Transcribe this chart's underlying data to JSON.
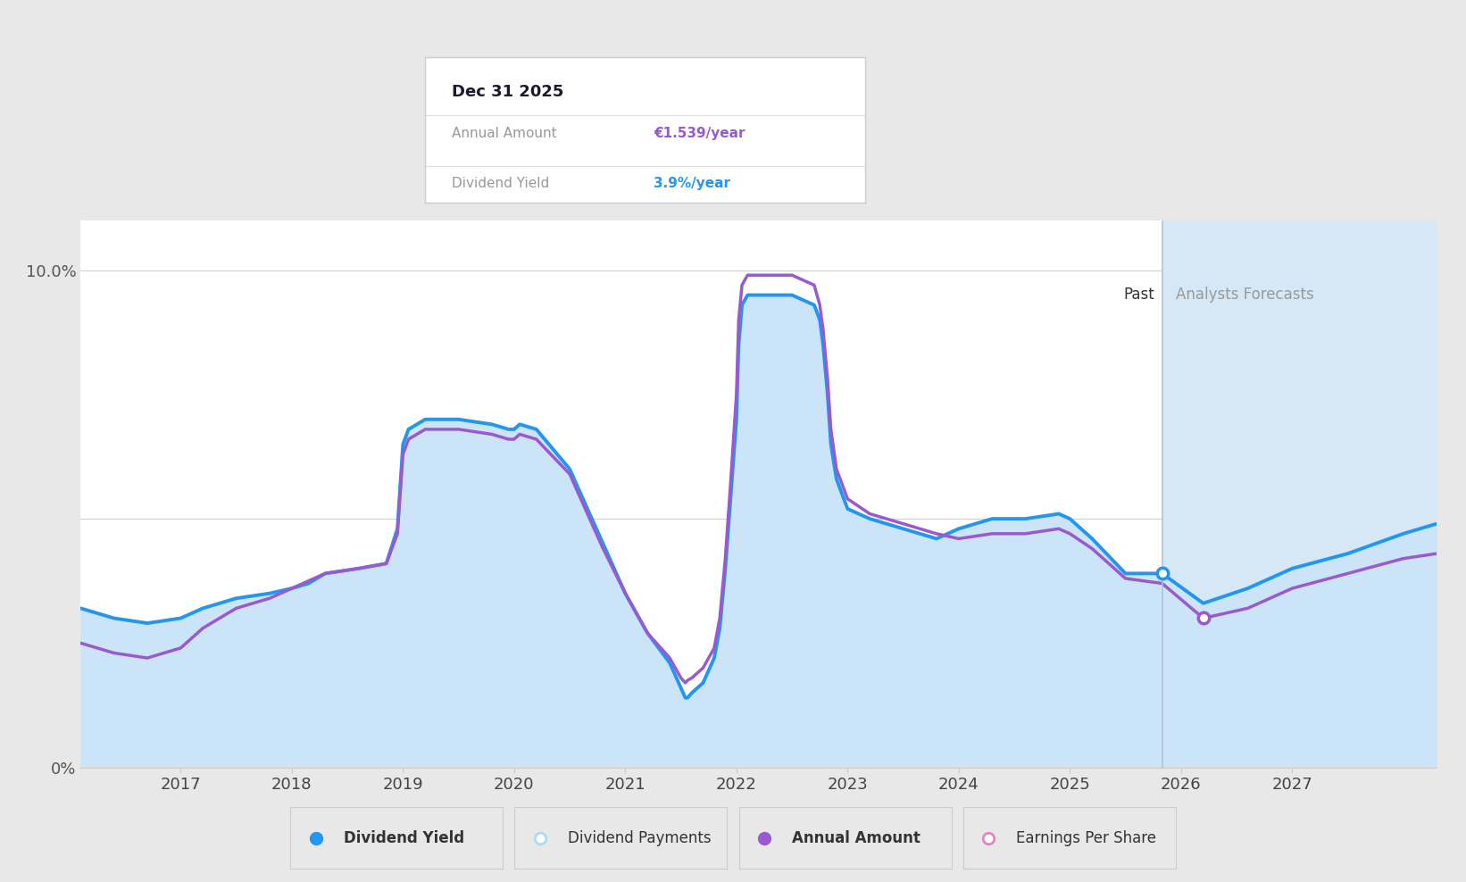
{
  "bg_color": "#e8e8e8",
  "plot_bg_color": "#ffffff",
  "x_min": 2016.1,
  "x_max": 2028.3,
  "y_min": 0.0,
  "y_max": 11.0,
  "x_ticks": [
    2017,
    2018,
    2019,
    2020,
    2021,
    2022,
    2023,
    2024,
    2025,
    2026,
    2027
  ],
  "forecast_start": 2025.83,
  "past_label": "Past",
  "forecast_label": "Analysts Forecasts",
  "tooltip_title": "Dec 31 2025",
  "tooltip_annual_label": "Annual Amount",
  "tooltip_annual_value": "€1.539/year",
  "tooltip_yield_label": "Dividend Yield",
  "tooltip_yield_value": "3.9%/year",
  "annual_color": "#9b59d0",
  "yield_color": "#2196f3",
  "fill_color": "#cce4f7",
  "forecast_bg": "#d6e8f5",
  "grid_color": "#d0d0d0",
  "blue_x": [
    2016.1,
    2016.4,
    2016.7,
    2017.0,
    2017.2,
    2017.5,
    2017.8,
    2018.0,
    2018.15,
    2018.3,
    2018.6,
    2018.85,
    2018.95,
    2019.0,
    2019.05,
    2019.2,
    2019.5,
    2019.8,
    2019.95,
    2020.0,
    2020.05,
    2020.2,
    2020.5,
    2020.8,
    2021.0,
    2021.2,
    2021.4,
    2021.5,
    2021.52,
    2021.54,
    2021.56,
    2021.6,
    2021.7,
    2021.8,
    2021.85,
    2021.9,
    2021.95,
    2022.0,
    2022.02,
    2022.05,
    2022.1,
    2022.5,
    2022.7,
    2022.75,
    2022.78,
    2022.82,
    2022.85,
    2022.9,
    2023.0,
    2023.2,
    2023.5,
    2023.8,
    2024.0,
    2024.3,
    2024.6,
    2024.9,
    2025.0,
    2025.2,
    2025.5,
    2025.83,
    2026.2,
    2026.6,
    2027.0,
    2027.5,
    2028.0,
    2028.3
  ],
  "blue_y": [
    3.2,
    3.0,
    2.9,
    3.0,
    3.2,
    3.4,
    3.5,
    3.6,
    3.7,
    3.9,
    4.0,
    4.1,
    4.8,
    6.5,
    6.8,
    7.0,
    7.0,
    6.9,
    6.8,
    6.8,
    6.9,
    6.8,
    6.0,
    4.5,
    3.5,
    2.7,
    2.1,
    1.6,
    1.5,
    1.4,
    1.4,
    1.5,
    1.7,
    2.2,
    2.8,
    4.0,
    5.5,
    7.0,
    8.5,
    9.3,
    9.5,
    9.5,
    9.3,
    9.0,
    8.5,
    7.5,
    6.5,
    5.8,
    5.2,
    5.0,
    4.8,
    4.6,
    4.8,
    5.0,
    5.0,
    5.1,
    5.0,
    4.6,
    3.9,
    3.9,
    3.3,
    3.6,
    4.0,
    4.3,
    4.7,
    4.9
  ],
  "purple_x": [
    2016.1,
    2016.4,
    2016.7,
    2017.0,
    2017.2,
    2017.5,
    2017.8,
    2018.0,
    2018.15,
    2018.3,
    2018.6,
    2018.85,
    2018.95,
    2019.0,
    2019.05,
    2019.2,
    2019.5,
    2019.8,
    2019.95,
    2020.0,
    2020.05,
    2020.2,
    2020.5,
    2020.8,
    2021.0,
    2021.2,
    2021.4,
    2021.5,
    2021.52,
    2021.54,
    2021.56,
    2021.6,
    2021.7,
    2021.8,
    2021.85,
    2021.9,
    2021.95,
    2022.0,
    2022.02,
    2022.05,
    2022.1,
    2022.5,
    2022.7,
    2022.75,
    2022.78,
    2022.82,
    2022.85,
    2022.9,
    2023.0,
    2023.2,
    2023.5,
    2023.8,
    2024.0,
    2024.3,
    2024.6,
    2024.9,
    2025.0,
    2025.2,
    2025.5,
    2025.83,
    2026.2,
    2026.6,
    2027.0,
    2027.5,
    2028.0,
    2028.3
  ],
  "purple_y": [
    2.5,
    2.3,
    2.2,
    2.4,
    2.8,
    3.2,
    3.4,
    3.6,
    3.75,
    3.9,
    4.0,
    4.1,
    4.7,
    6.3,
    6.6,
    6.8,
    6.8,
    6.7,
    6.6,
    6.6,
    6.7,
    6.6,
    5.9,
    4.4,
    3.5,
    2.7,
    2.2,
    1.8,
    1.75,
    1.7,
    1.75,
    1.8,
    2.0,
    2.4,
    3.0,
    4.2,
    5.8,
    7.5,
    9.0,
    9.7,
    9.9,
    9.9,
    9.7,
    9.3,
    8.8,
    7.8,
    6.8,
    6.0,
    5.4,
    5.1,
    4.9,
    4.7,
    4.6,
    4.7,
    4.7,
    4.8,
    4.7,
    4.4,
    3.8,
    3.7,
    3.0,
    3.2,
    3.6,
    3.9,
    4.2,
    4.3
  ],
  "marker_blue_x": 2025.83,
  "marker_blue_y": 3.9,
  "marker_purple_x": 2026.2,
  "marker_purple_y": 3.0,
  "legend_items": [
    "Dividend Yield",
    "Dividend Payments",
    "Annual Amount",
    "Earnings Per Share"
  ],
  "legend_colors": [
    "#2196f3",
    "#aaddee",
    "#9b59d0",
    "#dd88bb"
  ]
}
